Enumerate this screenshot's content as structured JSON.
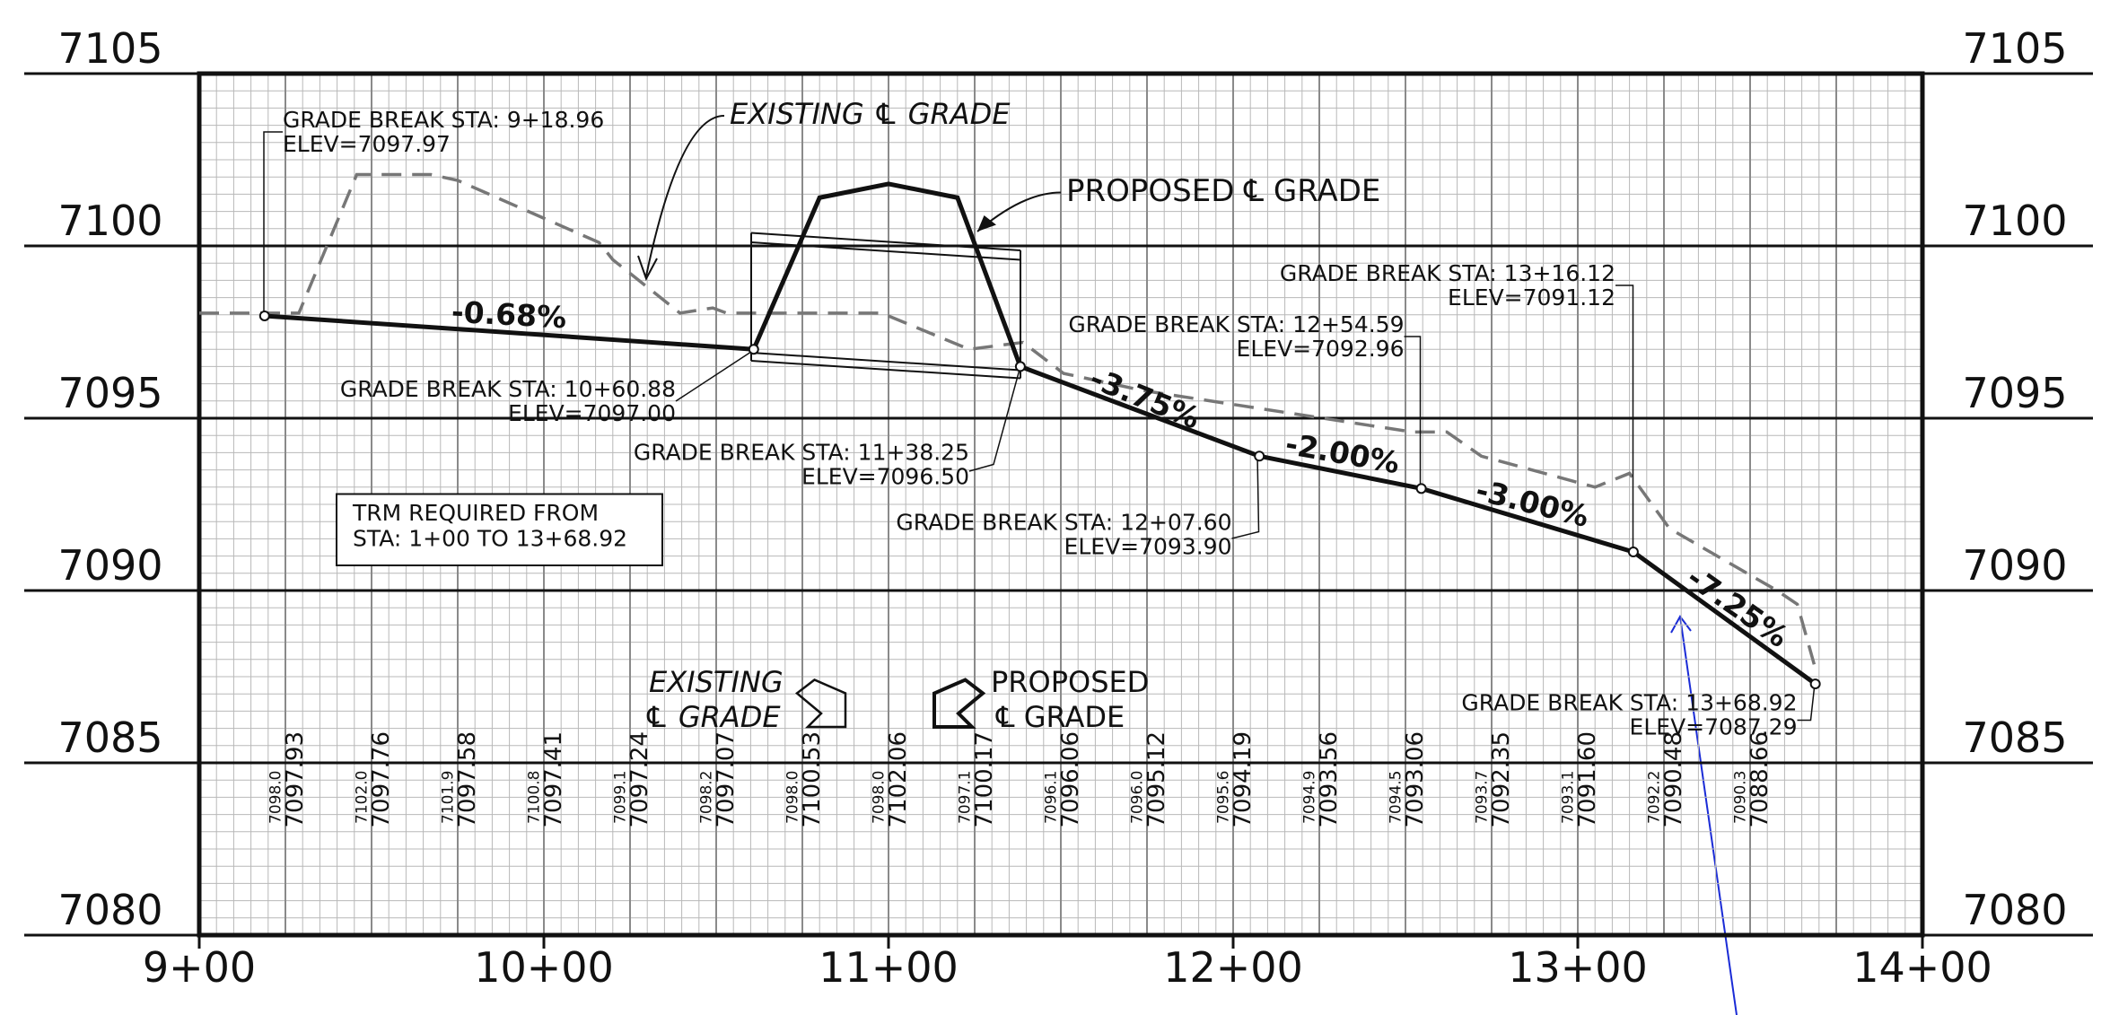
{
  "chart_data": {
    "type": "line",
    "xlim": [
      900,
      1400
    ],
    "xticks": [
      {
        "value": 900,
        "label": "9+00"
      },
      {
        "value": 1000,
        "label": "10+00"
      },
      {
        "value": 1100,
        "label": "11+00"
      },
      {
        "value": 1200,
        "label": "12+00"
      },
      {
        "value": 1300,
        "label": "13+00"
      },
      {
        "value": 1400,
        "label": "14+00"
      }
    ],
    "ylim": [
      7080,
      7105
    ],
    "yticks": [
      7080,
      7085,
      7090,
      7095,
      7100,
      7105
    ],
    "grid": true,
    "series": [
      {
        "name": "PROPOSED ℄ GRADE",
        "color": "#111111",
        "x": [
          918.96,
          1060.88,
          1080,
          1100,
          1120,
          1138.25,
          1207.6,
          1254.59,
          1316.12,
          1368.92
        ],
        "values": [
          7097.97,
          7097.0,
          7101.4,
          7101.8,
          7101.4,
          7096.5,
          7093.9,
          7092.96,
          7091.12,
          7087.29
        ]
      },
      {
        "name": "EXISTING ℄ GRADE",
        "color": "#777777",
        "x": [
          900,
          928.9,
          945.7,
          967.2,
          975,
          1016,
          1020,
          1039.5,
          1049,
          1053,
          1098,
          1123.4,
          1139,
          1150.8,
          1174,
          1252,
          1262,
          1272,
          1305,
          1315,
          1326.6,
          1357.8,
          1363.7,
          1368.75
        ],
        "values": [
          7098.05,
          7098.05,
          7102.07,
          7102.07,
          7101.9,
          7100.1,
          7099.6,
          7098.05,
          7098.2,
          7098.05,
          7098.05,
          7097.0,
          7097.2,
          7096.3,
          7095.8,
          7094.6,
          7094.6,
          7093.9,
          7093.0,
          7093.4,
          7091.8,
          7090.0,
          7089.6,
          7087.8
        ]
      }
    ],
    "grade_breaks": [
      {
        "sta": "GRADE BREAK STA: 9+18.96",
        "elev": "ELEV=7097.97"
      },
      {
        "sta": "GRADE BREAK STA: 10+60.88",
        "elev": "ELEV=7097.00"
      },
      {
        "sta": "GRADE BREAK STA: 11+38.25",
        "elev": "ELEV=7096.50"
      },
      {
        "sta": "GRADE BREAK STA: 12+07.60",
        "elev": "ELEV=7093.90"
      },
      {
        "sta": "GRADE BREAK STA: 12+54.59",
        "elev": "ELEV=7092.96"
      },
      {
        "sta": "GRADE BREAK STA: 13+16.12",
        "elev": "ELEV=7091.12"
      },
      {
        "sta": "GRADE BREAK STA: 13+68.92",
        "elev": "ELEV=7087.29"
      }
    ],
    "slopes": [
      "-0.68%",
      "-3.75%",
      "-2.00%",
      "-3.00%",
      "-7.25%"
    ],
    "callouts": {
      "existing": "EXISTING ℄ GRADE",
      "proposed": "PROPOSED ℄ GRADE"
    },
    "note": [
      "TRM REQUIRED FROM",
      "STA: 1+00 TO 13+68.92"
    ],
    "legend": {
      "existing": [
        "EXISTING",
        "℄ GRADE"
      ],
      "proposed": [
        "PROPOSED",
        "℄ GRADE"
      ]
    },
    "elevation_labels": {
      "existing": [
        "7098.0",
        "7102.0",
        "7101.9",
        "7100.8",
        "7099.1",
        "7098.2",
        "7098.0",
        "7098.0",
        "7097.1",
        "7096.1",
        "7096.0",
        "7095.6",
        "7094.9",
        "7094.5",
        "7093.7",
        "7093.1",
        "7092.2",
        "7090.3"
      ],
      "proposed": [
        "7097.93",
        "7097.76",
        "7097.58",
        "7097.41",
        "7097.24",
        "7097.07",
        "7100.53",
        "7102.06",
        "7100.17",
        "7096.06",
        "7095.12",
        "7094.19",
        "7093.56",
        "7093.06",
        "7092.35",
        "7091.60",
        "7090.48",
        "7088.66"
      ]
    }
  }
}
